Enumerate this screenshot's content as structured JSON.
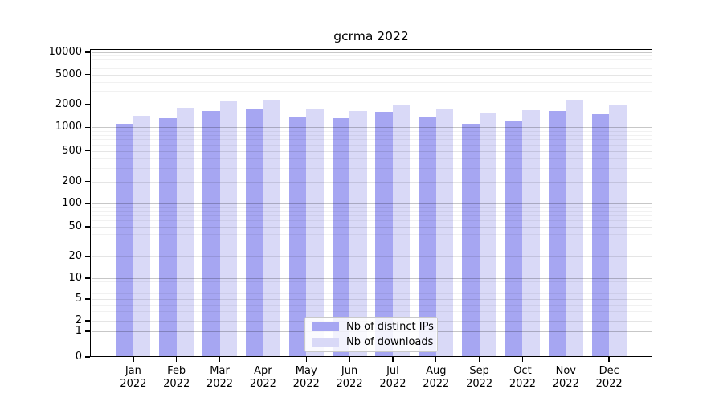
{
  "chart_data": {
    "type": "bar",
    "title": "gcrma 2022",
    "scale": "symlog",
    "grid": true,
    "legend_position": "bottom-center",
    "ylim": [
      0,
      10000
    ],
    "y_ticks": [
      0,
      1,
      2,
      5,
      10,
      20,
      50,
      100,
      200,
      500,
      1000,
      2000,
      5000,
      10000
    ],
    "categories": [
      {
        "month": "Jan",
        "year": "2022"
      },
      {
        "month": "Feb",
        "year": "2022"
      },
      {
        "month": "Mar",
        "year": "2022"
      },
      {
        "month": "Apr",
        "year": "2022"
      },
      {
        "month": "May",
        "year": "2022"
      },
      {
        "month": "Jun",
        "year": "2022"
      },
      {
        "month": "Jul",
        "year": "2022"
      },
      {
        "month": "Aug",
        "year": "2022"
      },
      {
        "month": "Sep",
        "year": "2022"
      },
      {
        "month": "Oct",
        "year": "2022"
      },
      {
        "month": "Nov",
        "year": "2022"
      },
      {
        "month": "Dec",
        "year": "2022"
      }
    ],
    "series": [
      {
        "name": "Nb of distinct IPs",
        "color": "#a6a6f2",
        "values": [
          1100,
          1330,
          1650,
          1770,
          1390,
          1310,
          1600,
          1390,
          1110,
          1230,
          1630,
          1480
        ]
      },
      {
        "name": "Nb of downloads",
        "color": "#d9d9f7",
        "values": [
          1410,
          1800,
          2220,
          2300,
          1740,
          1630,
          1950,
          1730,
          1530,
          1690,
          2290,
          1950
        ]
      }
    ]
  }
}
